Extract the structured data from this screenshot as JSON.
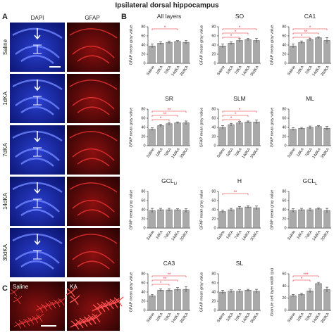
{
  "figure": {
    "title": "Ipsilateral dorsal hippocampus",
    "panel_labels": [
      "A",
      "B",
      "C"
    ],
    "columns": [
      "DAPI",
      "GFAP"
    ],
    "rows": [
      "Saline",
      "1dKA",
      "7dKA",
      "14dKA",
      "30dKA"
    ],
    "inset_labels": [
      "Saline",
      "KA"
    ]
  },
  "chart_data": [
    {
      "type": "bar",
      "title": "All layers",
      "ylabel": "GFAP mean gray value",
      "categories": [
        "Saline",
        "1dKA",
        "7dKA",
        "14dKA",
        "30dKA"
      ],
      "values": [
        38,
        44,
        46,
        48,
        46
      ],
      "errors": [
        4,
        3,
        3,
        2,
        4
      ],
      "color": "#a9a9a9",
      "ylim": [
        0,
        80
      ],
      "yticks": [
        0,
        20,
        40,
        60,
        80
      ],
      "annotations": [
        {
          "from": 0,
          "to": 3,
          "label": "*",
          "color": "#e0242c"
        }
      ]
    },
    {
      "type": "bar",
      "title": "SO",
      "ylabel": "GFAP mean gray value",
      "categories": [
        "Saline",
        "1dKA",
        "7dKA",
        "14dKA",
        "30dKA"
      ],
      "values": [
        38,
        44,
        50,
        52,
        50
      ],
      "errors": [
        4,
        3,
        4,
        3,
        5
      ],
      "color": "#a9a9a9",
      "ylim": [
        0,
        80
      ],
      "yticks": [
        0,
        20,
        40,
        60,
        80
      ],
      "annotations": [
        {
          "from": 0,
          "to": 2,
          "label": "*",
          "color": "#e0242c"
        },
        {
          "from": 0,
          "to": 3,
          "label": "*",
          "color": "#e0242c"
        },
        {
          "from": 0,
          "to": 4,
          "label": "*",
          "color": "#e0242c"
        }
      ]
    },
    {
      "type": "bar",
      "title": "CA1",
      "ylabel": "GFAP mean gray value",
      "categories": [
        "Saline",
        "1dKA",
        "7dKA",
        "14dKA",
        "30dKA"
      ],
      "values": [
        38,
        46,
        52,
        56,
        50
      ],
      "errors": [
        4,
        3,
        3,
        2,
        6
      ],
      "color": "#a9a9a9",
      "ylim": [
        0,
        80
      ],
      "yticks": [
        0,
        20,
        40,
        60,
        80
      ],
      "annotations": [
        {
          "from": 0,
          "to": 2,
          "label": "*",
          "color": "#e0242c"
        },
        {
          "from": 0,
          "to": 3,
          "label": "**",
          "color": "#e0242c"
        },
        {
          "from": 0,
          "to": 4,
          "label": "*",
          "color": "#e0242c"
        }
      ]
    },
    {
      "type": "bar",
      "title": "SR",
      "ylabel": "GFAP mean gray value",
      "categories": [
        "Saline",
        "1dKA",
        "7dKA",
        "14dKA",
        "30dKA"
      ],
      "values": [
        36,
        44,
        48,
        50,
        50
      ],
      "errors": [
        3,
        3,
        3,
        2,
        4
      ],
      "color": "#a9a9a9",
      "ylim": [
        0,
        80
      ],
      "yticks": [
        0,
        20,
        40,
        60,
        80
      ],
      "annotations": [
        {
          "from": 0,
          "to": 2,
          "label": "*",
          "color": "#e0242c"
        },
        {
          "from": 0,
          "to": 3,
          "label": "**",
          "color": "#e0242c"
        },
        {
          "from": 0,
          "to": 4,
          "label": "**",
          "color": "#e0242c"
        }
      ]
    },
    {
      "type": "bar",
      "title": "SLM",
      "ylabel": "GFAP mean gray value",
      "categories": [
        "Saline",
        "1dKA",
        "7dKA",
        "14dKA",
        "30dKA"
      ],
      "values": [
        40,
        46,
        50,
        52,
        52
      ],
      "errors": [
        4,
        3,
        3,
        2,
        4
      ],
      "color": "#a9a9a9",
      "ylim": [
        0,
        80
      ],
      "yticks": [
        0,
        20,
        40,
        60,
        80
      ],
      "annotations": [
        {
          "from": 0,
          "to": 2,
          "label": "*",
          "color": "#e0242c"
        },
        {
          "from": 0,
          "to": 3,
          "label": "*",
          "color": "#e0242c"
        },
        {
          "from": 0,
          "to": 4,
          "label": "*",
          "color": "#e0242c"
        }
      ]
    },
    {
      "type": "bar",
      "title": "ML",
      "ylabel": "GFAP mean gray value",
      "categories": [
        "Saline",
        "1dKA",
        "7dKA",
        "14dKA",
        "30dKA"
      ],
      "values": [
        36,
        38,
        40,
        42,
        38
      ],
      "errors": [
        3,
        2,
        3,
        2,
        4
      ],
      "color": "#a9a9a9",
      "ylim": [
        0,
        80
      ],
      "yticks": [
        0,
        20,
        40,
        60,
        80
      ],
      "annotations": []
    },
    {
      "type": "bar",
      "title": "GCL",
      "title_sub": "U",
      "ylabel": "GFAP mean gray value",
      "categories": [
        "Saline",
        "1dKA",
        "7dKA",
        "14dKA",
        "30dKA"
      ],
      "values": [
        38,
        40,
        40,
        40,
        38
      ],
      "errors": [
        5,
        3,
        3,
        2,
        4
      ],
      "color": "#a9a9a9",
      "ylim": [
        0,
        80
      ],
      "yticks": [
        0,
        20,
        40,
        60,
        80
      ],
      "annotations": []
    },
    {
      "type": "bar",
      "title": "H",
      "ylabel": "GFAP mean gray value",
      "categories": [
        "Saline",
        "1dKA",
        "7dKA",
        "14dKA",
        "30dKA"
      ],
      "values": [
        36,
        40,
        44,
        46,
        44
      ],
      "errors": [
        3,
        3,
        3,
        3,
        4
      ],
      "color": "#a9a9a9",
      "ylim": [
        0,
        80
      ],
      "yticks": [
        0,
        20,
        40,
        60,
        80
      ],
      "annotations": [
        {
          "from": 0,
          "to": 3,
          "label": "**",
          "color": "#e0242c"
        }
      ]
    },
    {
      "type": "bar",
      "title": "GCL",
      "title_sub": "L",
      "ylabel": "GFAP mean gray value",
      "categories": [
        "Saline",
        "1dKA",
        "7dKA",
        "14dKA",
        "30dKA"
      ],
      "values": [
        38,
        40,
        40,
        42,
        38
      ],
      "errors": [
        4,
        3,
        3,
        2,
        5
      ],
      "color": "#a9a9a9",
      "ylim": [
        0,
        80
      ],
      "yticks": [
        0,
        20,
        40,
        60,
        80
      ],
      "annotations": []
    },
    {
      "type": "bar",
      "title": "CA3",
      "ylabel": "GFAP mean gray value",
      "categories": [
        "Saline",
        "1dKA",
        "7dKA",
        "14dKA",
        "30dKA"
      ],
      "values": [
        32,
        44,
        44,
        46,
        46
      ],
      "errors": [
        3,
        3,
        3,
        4,
        6
      ],
      "color": "#a9a9a9",
      "ylim": [
        0,
        80
      ],
      "yticks": [
        0,
        20,
        40,
        60,
        80
      ],
      "annotations": [
        {
          "from": 0,
          "to": 2,
          "label": "*",
          "color": "#e0242c"
        },
        {
          "from": 0,
          "to": 3,
          "label": "**",
          "color": "#e0242c"
        },
        {
          "from": 0,
          "to": 4,
          "label": "**",
          "color": "#e0242c"
        }
      ]
    },
    {
      "type": "bar",
      "title": "SL",
      "ylabel": "GFAP mean gray value",
      "categories": [
        "Saline",
        "1dKA",
        "7dKA",
        "14dKA",
        "30dKA"
      ],
      "values": [
        40,
        42,
        42,
        44,
        42
      ],
      "errors": [
        4,
        3,
        3,
        2,
        4
      ],
      "color": "#a9a9a9",
      "ylim": [
        0,
        80
      ],
      "yticks": [
        0,
        20,
        40,
        60,
        80
      ],
      "annotations": []
    },
    {
      "type": "bar",
      "ylabel": "Granule cell layer width (px)",
      "categories": [
        "Saline",
        "1dKA",
        "7dKA",
        "14dKA",
        "30dKA"
      ],
      "values": [
        24,
        26,
        32,
        44,
        34
      ],
      "errors": [
        2,
        2,
        3,
        2,
        4
      ],
      "color": "#a9a9a9",
      "ylim": [
        0,
        60
      ],
      "yticks": [
        0,
        20,
        40,
        60
      ],
      "annotations": [
        {
          "from": 0,
          "to": 2,
          "label": "*",
          "color": "#e0242c"
        },
        {
          "from": 0,
          "to": 3,
          "label": "***",
          "color": "#e0242c"
        }
      ]
    }
  ]
}
